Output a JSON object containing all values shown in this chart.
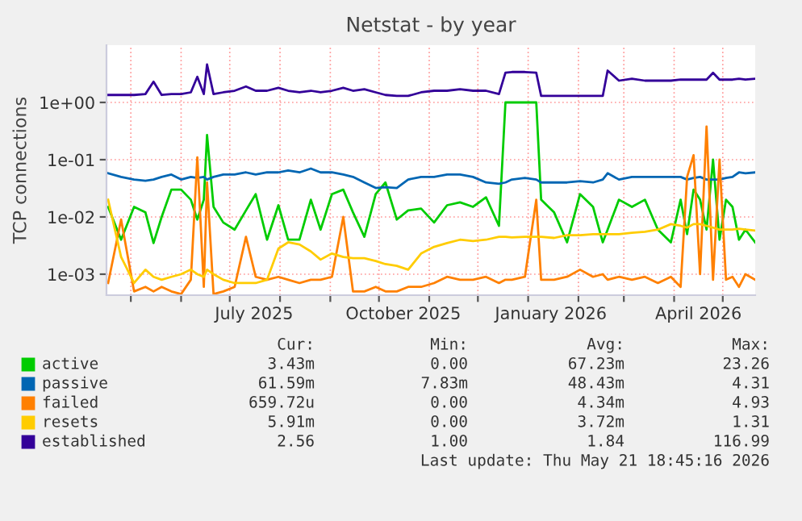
{
  "chart_data": {
    "type": "line",
    "title": "Netstat - by year",
    "ylabel": "TCP connections",
    "log": "y",
    "grid": true,
    "legend": "bottom",
    "marker": "none",
    "line_style": "solid",
    "xlim": [
      "2025-04-16",
      "2026-05-21"
    ],
    "xticks": [
      {
        "value": "2025-05-01",
        "label": null
      },
      {
        "value": "2025-06-01",
        "label": null
      },
      {
        "value": "2025-07-01",
        "label": null
      },
      {
        "value": "2025-07-16",
        "label": "July 2025"
      },
      {
        "value": "2025-08-01",
        "label": null
      },
      {
        "value": "2025-09-01",
        "label": null
      },
      {
        "value": "2025-10-01",
        "label": null
      },
      {
        "value": "2025-10-16",
        "label": "October 2025"
      },
      {
        "value": "2025-11-01",
        "label": null
      },
      {
        "value": "2025-12-01",
        "label": null
      },
      {
        "value": "2026-01-01",
        "label": null
      },
      {
        "value": "2026-01-15",
        "label": "January 2026"
      },
      {
        "value": "2026-02-01",
        "label": null
      },
      {
        "value": "2026-03-01",
        "label": null
      },
      {
        "value": "2026-04-01",
        "label": null
      },
      {
        "value": "2026-04-16",
        "label": "April 2026"
      },
      {
        "value": "2026-05-01",
        "label": null
      }
    ],
    "ylim": [
      0.00043,
      10
    ],
    "yticks": [
      {
        "value": 0.001,
        "label": "1e-03"
      },
      {
        "value": 0.01,
        "label": "1e-02"
      },
      {
        "value": 0.1,
        "label": "1e-01"
      },
      {
        "value": 1,
        "label": "1e+00"
      }
    ],
    "x": [
      "2025-04-17",
      "2025-04-25",
      "2025-05-03",
      "2025-05-10",
      "2025-05-15",
      "2025-05-20",
      "2025-05-26",
      "2025-06-01",
      "2025-06-07",
      "2025-06-11",
      "2025-06-15",
      "2025-06-17",
      "2025-06-21",
      "2025-06-27",
      "2025-07-04",
      "2025-07-11",
      "2025-07-17",
      "2025-07-24",
      "2025-07-31",
      "2025-08-06",
      "2025-08-13",
      "2025-08-20",
      "2025-08-26",
      "2025-09-02",
      "2025-09-09",
      "2025-09-15",
      "2025-09-22",
      "2025-09-29",
      "2025-10-05",
      "2025-10-12",
      "2025-10-19",
      "2025-10-27",
      "2025-11-04",
      "2025-11-12",
      "2025-11-20",
      "2025-11-28",
      "2025-12-06",
      "2025-12-14",
      "2025-12-18",
      "2025-12-22",
      "2025-12-30",
      "2026-01-06",
      "2026-01-09",
      "2026-01-17",
      "2026-01-25",
      "2026-02-02",
      "2026-02-10",
      "2026-02-16",
      "2026-02-19",
      "2026-02-26",
      "2026-03-06",
      "2026-03-14",
      "2026-03-22",
      "2026-03-30",
      "2026-04-05",
      "2026-04-09",
      "2026-04-13",
      "2026-04-17",
      "2026-04-21",
      "2026-04-25",
      "2026-04-29",
      "2026-05-03",
      "2026-05-07",
      "2026-05-11",
      "2026-05-15",
      "2026-05-21"
    ],
    "series": [
      {
        "name": "active",
        "color": "#00cc00",
        "values": [
          0.015,
          0.004,
          0.015,
          0.012,
          0.0035,
          0.01,
          0.03,
          0.03,
          0.02,
          0.009,
          0.02,
          0.27,
          0.015,
          0.008,
          0.006,
          0.013,
          0.025,
          0.004,
          0.016,
          0.004,
          0.004,
          0.02,
          0.006,
          0.025,
          0.03,
          0.012,
          0.0045,
          0.025,
          0.04,
          0.009,
          0.013,
          0.014,
          0.008,
          0.016,
          0.018,
          0.015,
          0.022,
          0.007,
          1.0,
          1.0,
          1.0,
          1.0,
          0.02,
          0.012,
          0.0036,
          0.025,
          0.015,
          0.0036,
          0.006,
          0.02,
          0.015,
          0.02,
          0.006,
          0.0036,
          0.02,
          0.005,
          0.03,
          0.02,
          0.006,
          0.1,
          0.004,
          0.02,
          0.015,
          0.004,
          0.006,
          0.0036
        ]
      },
      {
        "name": "passive",
        "color": "#0066b3",
        "values": [
          0.058,
          0.05,
          0.045,
          0.043,
          0.045,
          0.05,
          0.055,
          0.045,
          0.05,
          0.048,
          0.05,
          0.045,
          0.05,
          0.055,
          0.055,
          0.06,
          0.055,
          0.06,
          0.06,
          0.065,
          0.06,
          0.07,
          0.06,
          0.06,
          0.055,
          0.05,
          0.04,
          0.032,
          0.033,
          0.032,
          0.045,
          0.05,
          0.05,
          0.055,
          0.055,
          0.05,
          0.04,
          0.038,
          0.04,
          0.045,
          0.048,
          0.045,
          0.04,
          0.04,
          0.04,
          0.042,
          0.04,
          0.045,
          0.058,
          0.045,
          0.05,
          0.05,
          0.05,
          0.05,
          0.05,
          0.045,
          0.048,
          0.05,
          0.045,
          0.045,
          0.045,
          0.048,
          0.05,
          0.06,
          0.058,
          0.06
        ]
      },
      {
        "name": "failed",
        "color": "#ff8000",
        "values": [
          0.0007,
          0.009,
          0.0005,
          0.0006,
          0.0005,
          0.0006,
          0.0005,
          0.00045,
          0.0008,
          0.11,
          0.0006,
          0.04,
          0.00045,
          0.0005,
          0.0006,
          0.0045,
          0.0009,
          0.0008,
          0.0009,
          0.0008,
          0.0007,
          0.0008,
          0.0008,
          0.0009,
          0.01,
          0.0005,
          0.0005,
          0.0006,
          0.0005,
          0.0005,
          0.0006,
          0.0006,
          0.0007,
          0.0009,
          0.0008,
          0.0008,
          0.0009,
          0.0007,
          0.0008,
          0.0008,
          0.0009,
          0.02,
          0.0008,
          0.0008,
          0.0009,
          0.0012,
          0.0009,
          0.001,
          0.0008,
          0.0009,
          0.0008,
          0.0009,
          0.0007,
          0.0009,
          0.0006,
          0.05,
          0.12,
          0.001,
          0.38,
          0.0008,
          0.1,
          0.0008,
          0.0009,
          0.0006,
          0.001,
          0.0008
        ]
      },
      {
        "name": "resets",
        "color": "#ffcc00",
        "values": [
          0.02,
          0.002,
          0.0007,
          0.0012,
          0.0009,
          0.0008,
          0.0009,
          0.001,
          0.0012,
          0.001,
          0.0009,
          0.0012,
          0.001,
          0.0008,
          0.0007,
          0.0007,
          0.0007,
          0.0008,
          0.0028,
          0.0036,
          0.0033,
          0.0025,
          0.0018,
          0.0023,
          0.002,
          0.0019,
          0.0019,
          0.0017,
          0.0015,
          0.0014,
          0.0012,
          0.0023,
          0.003,
          0.0035,
          0.004,
          0.0038,
          0.004,
          0.0045,
          0.0045,
          0.0044,
          0.0045,
          0.0045,
          0.0045,
          0.0043,
          0.0048,
          0.0048,
          0.005,
          0.005,
          0.005,
          0.005,
          0.0053,
          0.0055,
          0.006,
          0.0075,
          0.007,
          0.0065,
          0.0075,
          0.0075,
          0.007,
          0.0065,
          0.006,
          0.006,
          0.006,
          0.0062,
          0.006,
          0.0058
        ]
      },
      {
        "name": "established",
        "color": "#330099",
        "values": [
          1.35,
          1.35,
          1.35,
          1.4,
          2.3,
          1.35,
          1.4,
          1.4,
          1.5,
          2.8,
          1.4,
          4.6,
          1.4,
          1.5,
          1.6,
          1.9,
          1.6,
          1.6,
          1.8,
          1.6,
          1.5,
          1.6,
          1.5,
          1.6,
          1.8,
          1.6,
          1.7,
          1.5,
          1.35,
          1.3,
          1.3,
          1.5,
          1.6,
          1.6,
          1.7,
          1.6,
          1.6,
          1.4,
          3.3,
          3.4,
          3.4,
          3.3,
          1.3,
          1.3,
          1.3,
          1.3,
          1.3,
          1.3,
          3.6,
          2.4,
          2.6,
          2.4,
          2.4,
          2.4,
          2.5,
          2.5,
          2.5,
          2.5,
          2.5,
          3.3,
          2.5,
          2.5,
          2.5,
          2.6,
          2.5,
          2.6
        ]
      }
    ],
    "annotations": [
      "Cur:",
      "Min:",
      "Avg:",
      "Max:",
      "3.43m",
      "0.00",
      "67.23m",
      "23.26",
      "61.59m",
      "7.83m",
      "48.43m",
      "4.31",
      "659.72u",
      "0.00",
      "4.34m",
      "4.93",
      "5.91m",
      "0.00",
      "3.72m",
      "1.31",
      "2.56",
      "1.00",
      "1.84",
      "116.99",
      "Last update: Thu May 21 18:45:16 2026"
    ]
  }
}
